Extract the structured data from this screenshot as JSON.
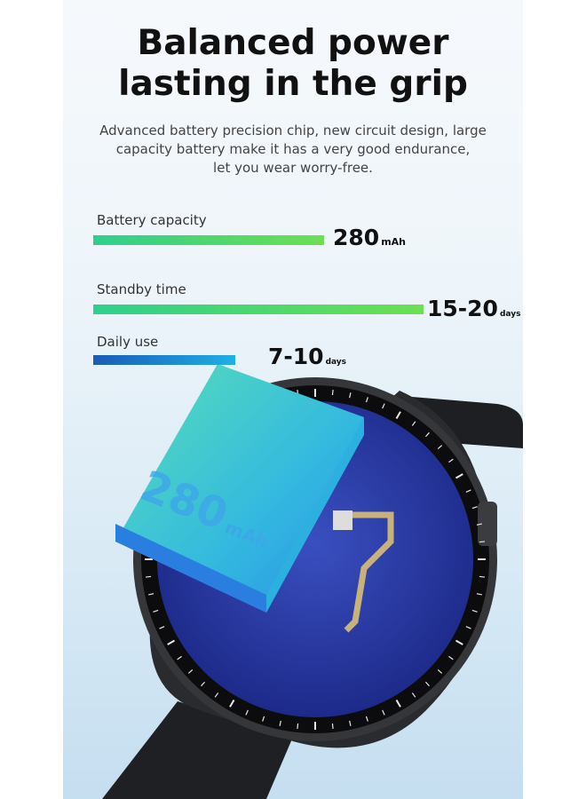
{
  "title": [
    "Balanced power",
    "lasting in the grip"
  ],
  "subtitle": [
    "Advanced battery precision chip, new circuit design, large",
    "capacity battery make it has a very good endurance,",
    "let you wear worry-free."
  ],
  "stats": [
    {
      "label": "Battery capacity",
      "value": "280",
      "unit": "mAh",
      "fill_percent": 70
    },
    {
      "label": "Standby time",
      "value": "15-20",
      "unit": "days",
      "fill_percent": 100
    },
    {
      "label": "Daily use",
      "value": "7-10",
      "unit": "days",
      "fill_percent": 43
    }
  ],
  "battery_label": {
    "value": "280",
    "unit": "mAh"
  },
  "colors": {
    "green_bar_start": "#2ecf8e",
    "green_bar_end": "#6ddf52",
    "blue_bar_start": "#1a5bb5",
    "blue_bar_end": "#1fb0e6",
    "battery": "#2fb8e0"
  }
}
